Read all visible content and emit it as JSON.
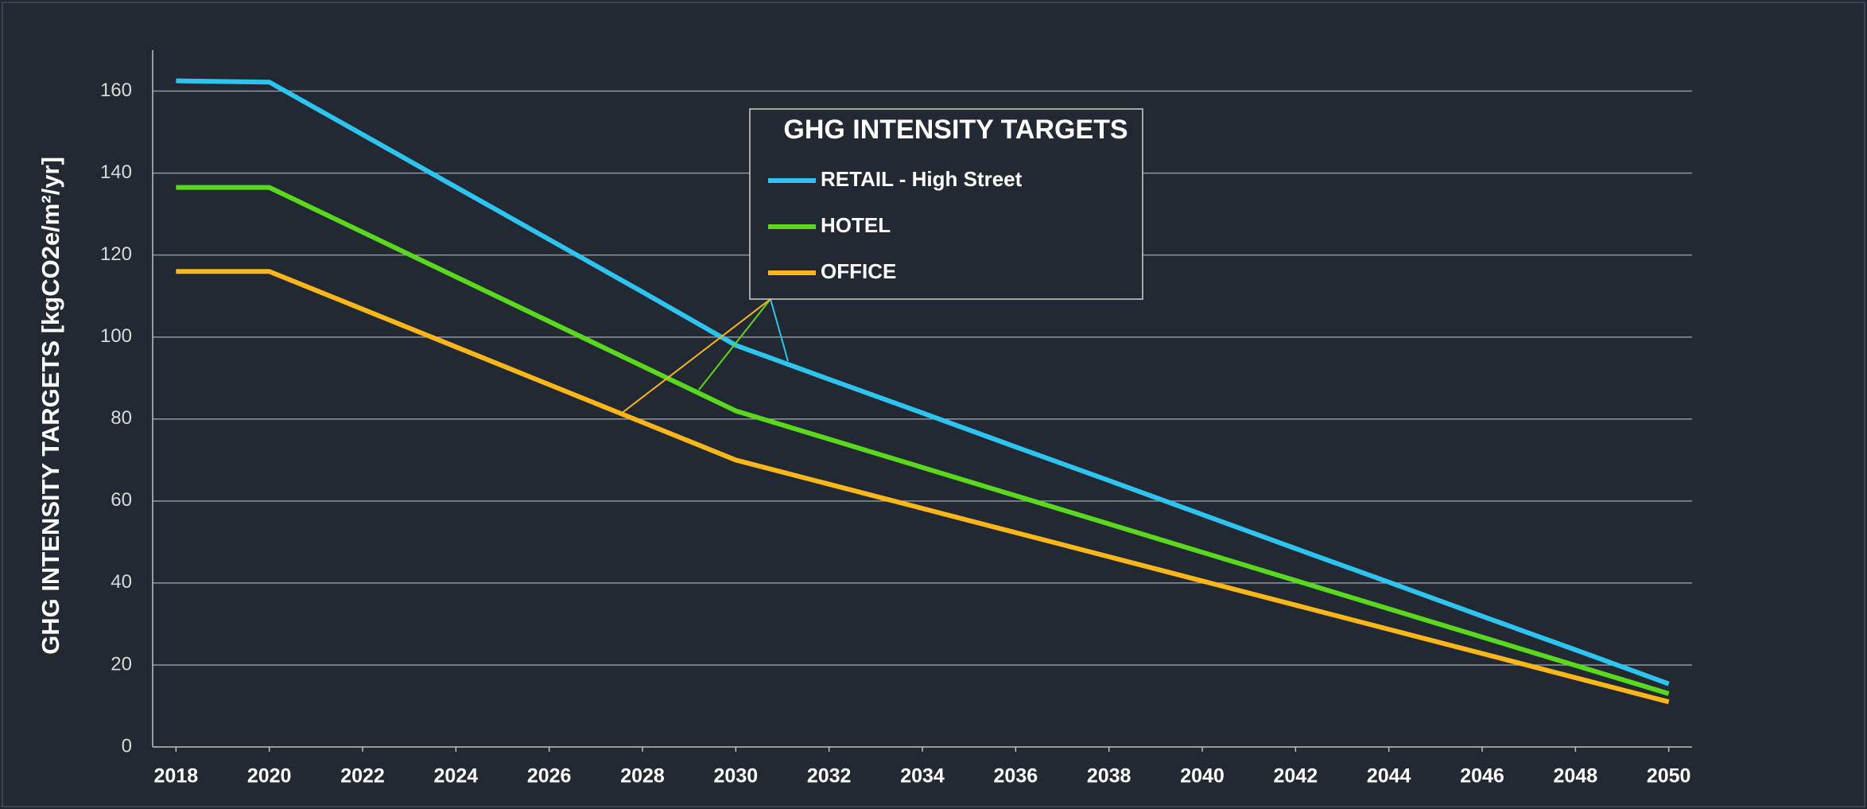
{
  "chart_data": {
    "type": "line",
    "legend_title": "GHG INTENSITY TARGETS",
    "y_label": "GHG INTENSITY TARGETS [kgCO2e/m²/yr]",
    "x": [
      2018,
      2020,
      2022,
      2024,
      2026,
      2028,
      2030,
      2032,
      2034,
      2036,
      2038,
      2040,
      2042,
      2044,
      2046,
      2048,
      2050
    ],
    "series": [
      {
        "name": "RETAIL - High Street",
        "color": "#2ec4f0",
        "values": [
          162.5,
          162.2,
          149.4,
          136.6,
          123.8,
          111,
          98,
          89.7,
          81.5,
          73.2,
          65,
          56.7,
          48.4,
          40.2,
          31.9,
          23.7,
          15.4
        ]
      },
      {
        "name": "HOTEL",
        "color": "#5ad81e",
        "values": [
          136.5,
          136.5,
          125.6,
          114.7,
          103.8,
          92.9,
          82,
          75.1,
          68.2,
          61.3,
          54.4,
          47.5,
          40.6,
          33.7,
          26.8,
          19.9,
          13
        ]
      },
      {
        "name": "OFFICE",
        "color": "#fbb61a",
        "values": [
          116,
          116,
          106.8,
          97.6,
          88.4,
          79.2,
          70,
          64.1,
          58.2,
          52.3,
          46.4,
          40.5,
          34.6,
          28.7,
          22.8,
          16.9,
          11
        ]
      }
    ],
    "xlim": [
      2017.5,
      2050.5
    ],
    "xticks": [
      2018,
      2020,
      2022,
      2024,
      2026,
      2028,
      2030,
      2032,
      2034,
      2036,
      2038,
      2040,
      2042,
      2044,
      2046,
      2048,
      2050
    ],
    "ylim": [
      0,
      170
    ],
    "yticks": [
      0,
      20,
      40,
      60,
      80,
      100,
      120,
      140,
      160
    ],
    "grid": true
  }
}
